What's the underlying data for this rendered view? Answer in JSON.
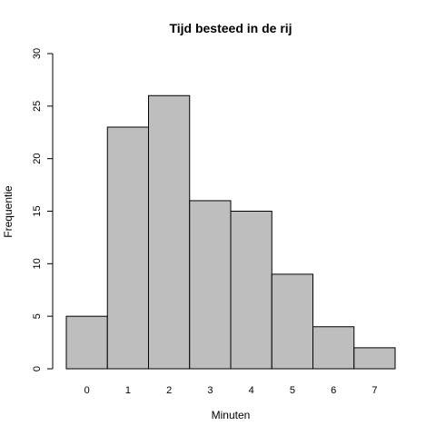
{
  "chart_data": {
    "type": "bar",
    "title": "Tijd besteed in de rij",
    "xlabel": "Minuten",
    "ylabel": "Frequentie",
    "categories": [
      "0",
      "1",
      "2",
      "3",
      "4",
      "5",
      "6",
      "7"
    ],
    "values": [
      5,
      23,
      26,
      16,
      15,
      9,
      4,
      2
    ],
    "ylim": [
      0,
      30
    ],
    "yticks": [
      0,
      5,
      10,
      15,
      20,
      25,
      30
    ],
    "grid": false,
    "legend": "none",
    "colors": {
      "bar_fill": "#bebebe",
      "bar_stroke": "#000000",
      "axis": "#000000",
      "background": "#ffffff"
    }
  }
}
